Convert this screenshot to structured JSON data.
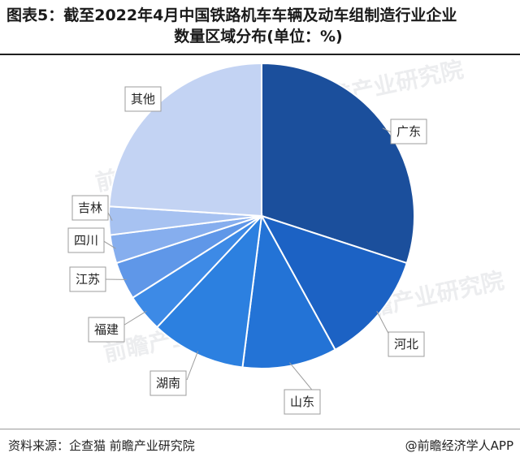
{
  "title": {
    "line1": "图表5：截至2022年4月中国铁路机车车辆及动车组制造行业企业",
    "line2": "数量区域分布(单位：%)"
  },
  "footer": {
    "source": "资料来源：企查猫 前瞻产业研究院",
    "brand": "@前瞻经济学人APP"
  },
  "watermark": "前瞻产业研究院",
  "chart_data": {
    "type": "pie",
    "title": "图表5：截至2022年4月中国铁路机车车辆及动车组制造行业企业数量区域分布(单位：%)",
    "unit": "%",
    "start_angle_deg": 0,
    "direction": "clockwise",
    "slices": [
      {
        "label": "广东",
        "value": 30.0,
        "color": "#1b4f9c"
      },
      {
        "label": "河北",
        "value": 12.0,
        "color": "#1c62c4"
      },
      {
        "label": "山东",
        "value": 10.0,
        "color": "#2373d6"
      },
      {
        "label": "湖南",
        "value": 10.0,
        "color": "#2c80e0"
      },
      {
        "label": "福建",
        "value": 4.0,
        "color": "#3d8ae6"
      },
      {
        "label": "江苏",
        "value": 4.0,
        "color": "#5f97e8"
      },
      {
        "label": "四川",
        "value": 3.0,
        "color": "#86aeee"
      },
      {
        "label": "吉林",
        "value": 3.0,
        "color": "#a7c2f1"
      },
      {
        "label": "其他",
        "value": 24.0,
        "color": "#c3d3f3"
      }
    ]
  }
}
